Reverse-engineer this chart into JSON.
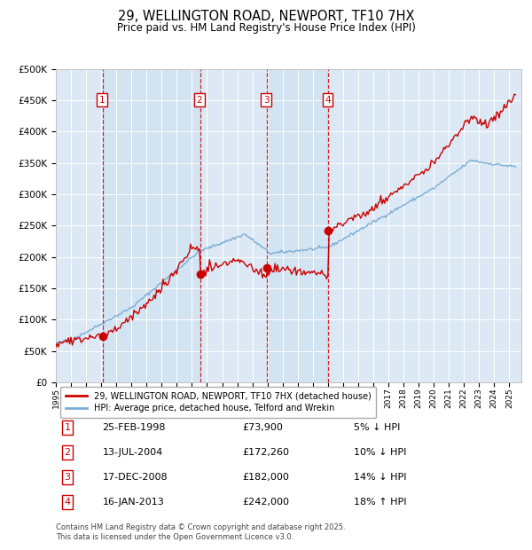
{
  "title": "29, WELLINGTON ROAD, NEWPORT, TF10 7HX",
  "subtitle": "Price paid vs. HM Land Registry's House Price Index (HPI)",
  "legend_label_red": "29, WELLINGTON ROAD, NEWPORT, TF10 7HX (detached house)",
  "legend_label_blue": "HPI: Average price, detached house, Telford and Wrekin",
  "footer": "Contains HM Land Registry data © Crown copyright and database right 2025.\nThis data is licensed under the Open Government Licence v3.0.",
  "sales": [
    {
      "num": 1,
      "date": "25-FEB-1998",
      "price": 73900,
      "pct": "5%",
      "dir": "↓",
      "year": 1998.12
    },
    {
      "num": 2,
      "date": "13-JUL-2004",
      "price": 172260,
      "pct": "10%",
      "dir": "↓",
      "year": 2004.54
    },
    {
      "num": 3,
      "date": "17-DEC-2008",
      "price": 182000,
      "pct": "14%",
      "dir": "↓",
      "year": 2008.96
    },
    {
      "num": 4,
      "date": "16-JAN-2013",
      "price": 242000,
      "pct": "18%",
      "dir": "↑",
      "year": 2013.04
    }
  ],
  "color_red": "#cc0000",
  "color_blue": "#7aadd4",
  "color_bg": "#dce9f5",
  "color_dashed": "#cc0000",
  "ylim": [
    0,
    500000
  ],
  "yticks": [
    0,
    50000,
    100000,
    150000,
    200000,
    250000,
    300000,
    350000,
    400000,
    450000,
    500000
  ],
  "xlim_start": 1995.0,
  "xlim_end": 2025.8
}
